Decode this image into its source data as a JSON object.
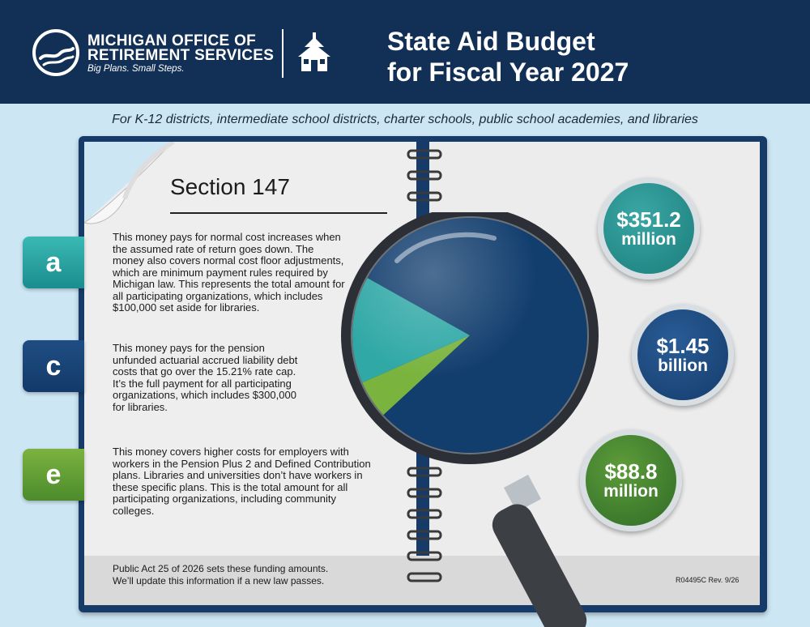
{
  "header": {
    "org_line1": "MICHIGAN OFFICE OF",
    "org_line2": "RETIREMENT SERVICES",
    "tagline": "Big Plans. Small Steps.",
    "title_line1": "State Aid Budget",
    "title_line2": "for Fiscal Year 2027"
  },
  "subtitle": "For K-12 districts, intermediate school districts, charter schools, public school academies, and libraries",
  "section": {
    "heading": "Section 147",
    "items": [
      {
        "tab": "a",
        "text": "This money pays for normal cost increases when the assumed rate of return goes down. The money also covers normal cost floor adjustments, which are minimum payment rules required by Michigan law. This represents the total amount for all participating organizations, which includes $100,000 set aside for libraries.",
        "amount_value": "$351.2",
        "amount_unit": "million",
        "color": "#1f8f8d"
      },
      {
        "tab": "c",
        "text": "This money pays for the pension unfunded actuarial accrued liability debt costs that go over the 15.21% rate cap. It’s the full payment for all participating organizations, which includes $300,000 for libraries.",
        "amount_value": "$1.45",
        "amount_unit": "billion",
        "color": "#143c6c"
      },
      {
        "tab": "e",
        "text": "This money covers higher costs for employers with workers in the Pension Plus 2 and Defined Contribution plans. Libraries and universities don’t have workers in these specific plans. This is the total amount for all participating organizations, including community colleges.",
        "amount_value": "$88.8",
        "amount_unit": "million",
        "color": "#3d7d2c"
      }
    ]
  },
  "footer": {
    "line1": "Public Act 25 of 2026 sets these funding amounts.",
    "line2": "We’ll update this information if a new law passes.",
    "form_code": "R04495C Rev. 9/26"
  },
  "pie_colors": {
    "large": "#123e6e",
    "teal": "#2fa8a6",
    "green": "#7ab43e"
  }
}
